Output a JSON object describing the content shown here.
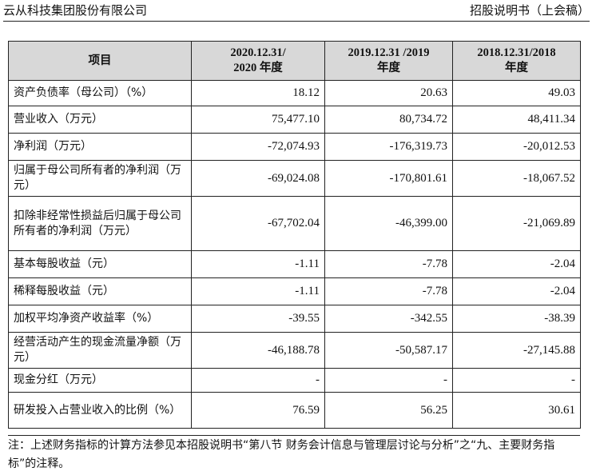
{
  "header": {
    "company": "云从科技集团股份有限公司",
    "doc_type": "招股说明书（上会稿）"
  },
  "table": {
    "columns": [
      {
        "line1": "项目",
        "line2": ""
      },
      {
        "line1": "2020.12.31/",
        "line2": "2020 年度"
      },
      {
        "line1": "2019.12.31 /2019",
        "line2": "年度"
      },
      {
        "line1": "2018.12.31/2018",
        "line2": "年度"
      }
    ],
    "rows": [
      {
        "label": "资产负债率（母公司）（%）",
        "v2020": "18.12",
        "v2019": "20.63",
        "v2018": "49.03"
      },
      {
        "label": "营业收入（万元）",
        "v2020": "75,477.10",
        "v2019": "80,734.72",
        "v2018": "48,411.34"
      },
      {
        "label": "净利润（万元）",
        "v2020": "-72,074.93",
        "v2019": "-176,319.73",
        "v2018": "-20,012.53"
      },
      {
        "label": "归属于母公司所有者的净利润（万元）",
        "v2020": "-69,024.08",
        "v2019": "-170,801.61",
        "v2018": "-18,067.52"
      },
      {
        "label": "扣除非经常性损益后归属于母公司所有者的净利润（万元）",
        "v2020": "-67,702.04",
        "v2019": "-46,399.00",
        "v2018": "-21,069.89"
      },
      {
        "label": "基本每股收益（元）",
        "v2020": "-1.11",
        "v2019": "-7.78",
        "v2018": "-2.04"
      },
      {
        "label": "稀释每股收益（元）",
        "v2020": "-1.11",
        "v2019": "-7.78",
        "v2018": "-2.04"
      },
      {
        "label": "加权平均净资产收益率（%）",
        "v2020": "-39.55",
        "v2019": "-342.55",
        "v2018": "-38.39"
      },
      {
        "label": "经营活动产生的现金流量净额（万元）",
        "v2020": "-46,188.78",
        "v2019": "-50,587.17",
        "v2018": "-27,145.88"
      },
      {
        "label": "现金分红（万元）",
        "v2020": "-",
        "v2019": "-",
        "v2018": "-"
      },
      {
        "label": "研发投入占营业收入的比例（%）",
        "v2020": "76.59",
        "v2019": "56.25",
        "v2018": "30.61"
      }
    ]
  },
  "footnote": "注：上述财务指标的计算方法参见本招股说明书“第八节 财务会计信息与管理层讨论与分析”之“九、主要财务指标”的注释。"
}
